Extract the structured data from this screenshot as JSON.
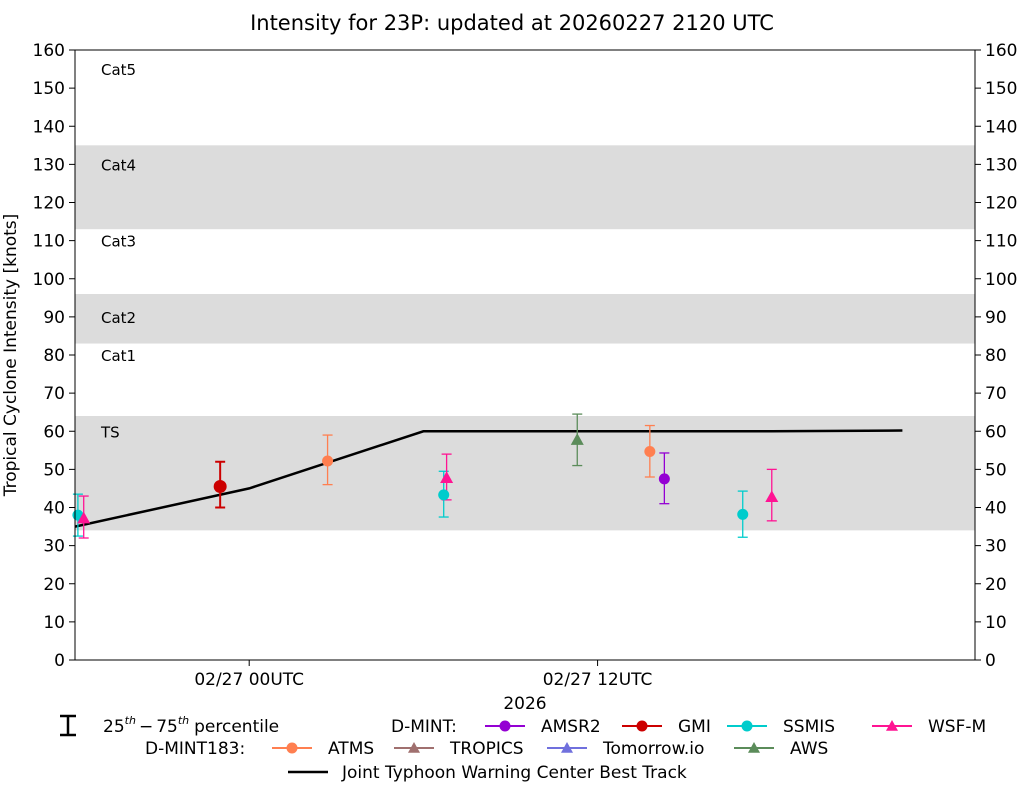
{
  "chart_data": {
    "type": "scatter",
    "title": "Intensity for 23P: updated at 20260227 2120 UTC",
    "ylabel": "Tropical Cyclone Intensity [knots]",
    "xlabel": "2026",
    "ylim": [
      0,
      160
    ],
    "yticks": [
      0,
      10,
      20,
      30,
      40,
      50,
      60,
      70,
      80,
      90,
      100,
      110,
      120,
      130,
      140,
      150,
      160
    ],
    "ytick_labels": [
      "0",
      "10",
      "20",
      "30",
      "40",
      "50",
      "60",
      "70",
      "80",
      "90",
      "100",
      "110",
      "120",
      "130",
      "140",
      "150",
      "160"
    ],
    "xlim_hours": [
      -6,
      25
    ],
    "xticks": [
      {
        "hours": 0,
        "label": "02/27 00UTC"
      },
      {
        "hours": 12,
        "label": "02/27 12UTC"
      }
    ],
    "bands": [
      {
        "label": "TS",
        "low": 34,
        "high": 64,
        "shaded": true,
        "label_at": 60
      },
      {
        "label": "Cat1",
        "low": 64,
        "high": 83,
        "shaded": false,
        "label_at": 80
      },
      {
        "label": "Cat2",
        "low": 83,
        "high": 96,
        "shaded": true,
        "label_at": 90
      },
      {
        "label": "Cat3",
        "low": 96,
        "high": 113,
        "shaded": false,
        "label_at": 110
      },
      {
        "label": "Cat4",
        "low": 113,
        "high": 135,
        "shaded": true,
        "label_at": 130
      },
      {
        "label": "Cat5",
        "low": 135,
        "high": 160,
        "shaded": false,
        "label_at": 155
      }
    ],
    "best_track": {
      "name": "Joint Typhoon Warning Center Best Track",
      "color": "#000000",
      "x_hours": [
        -6,
        0,
        6,
        12,
        18,
        22.5
      ],
      "values": [
        35,
        45,
        60,
        60,
        60,
        60.2
      ]
    },
    "series": [
      {
        "name": "SSMIS",
        "group": "D-MINT",
        "marker": "circle",
        "color": "#00cccc",
        "points": [
          {
            "x_hours": -5.9,
            "value": 38,
            "low": 32.5,
            "high": 43.5
          },
          {
            "x_hours": 6.7,
            "value": 43.3,
            "low": 37.5,
            "high": 49.5
          },
          {
            "x_hours": 17,
            "value": 38.2,
            "low": 32.2,
            "high": 44.3
          }
        ]
      },
      {
        "name": "WSF-M",
        "group": "D-MINT",
        "marker": "triangle",
        "color": "#ff1493",
        "points": [
          {
            "x_hours": -5.7,
            "value": 37.2,
            "low": 32,
            "high": 43
          },
          {
            "x_hours": 6.8,
            "value": 47.8,
            "low": 42,
            "high": 54
          },
          {
            "x_hours": 18,
            "value": 42.8,
            "low": 36.5,
            "high": 50
          }
        ]
      },
      {
        "name": "GMI",
        "group": "D-MINT",
        "marker": "circle",
        "color": "#cc0000",
        "points": [
          {
            "x_hours": -1,
            "value": 45.5,
            "low": 40,
            "high": 52
          }
        ]
      },
      {
        "name": "ATMS",
        "group": "D-MINT183",
        "marker": "circle",
        "color": "#ff7f50",
        "points": [
          {
            "x_hours": 2.7,
            "value": 52.2,
            "low": 46,
            "high": 59
          },
          {
            "x_hours": 13.8,
            "value": 54.7,
            "low": 48,
            "high": 61.5
          }
        ]
      },
      {
        "name": "AWS",
        "group": "D-MINT183",
        "marker": "triangle",
        "color": "#5b8c5a",
        "points": [
          {
            "x_hours": 11.3,
            "value": 57.8,
            "low": 51,
            "high": 64.5
          }
        ]
      },
      {
        "name": "AMSR2",
        "group": "D-MINT",
        "marker": "circle",
        "color": "#9400d3",
        "points": [
          {
            "x_hours": 14.3,
            "value": 47.5,
            "low": 41,
            "high": 54.3
          }
        ]
      },
      {
        "name": "TROPICS",
        "group": "D-MINT183",
        "marker": "triangle",
        "color": "#a0706f",
        "points": []
      },
      {
        "name": "Tomorrow.io",
        "group": "D-MINT183",
        "marker": "triangle",
        "color": "#7070dd",
        "points": []
      }
    ],
    "legend": {
      "percentile_label": "25th – 75th percentile",
      "percentile_base_a": "25",
      "percentile_sup_a": "th",
      "percentile_dash": "−",
      "percentile_base_b": "75",
      "percentile_sup_b": "th",
      "percentile_tail": "percentile",
      "group1_label": "D-MINT:",
      "group1_items": [
        "AMSR2",
        "GMI",
        "SSMIS",
        "WSF-M"
      ],
      "group2_label": "D-MINT183:",
      "group2_items": [
        "ATMS",
        "TROPICS",
        "Tomorrow.io",
        "AWS"
      ],
      "best_track_label": "Joint Typhoon Warning Center Best Track"
    }
  }
}
